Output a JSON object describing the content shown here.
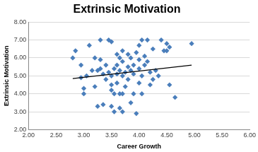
{
  "chart_data": {
    "type": "scatter",
    "title": "Extrinsic Motivation",
    "x_label": "Career Growth",
    "y_label": "Extrinsic Motivation",
    "xlim": [
      2,
      6
    ],
    "ylim": [
      2,
      8
    ],
    "xticks": [
      {
        "value": 2,
        "label": "2.00"
      },
      {
        "value": 2.5,
        "label": "2.50"
      },
      {
        "value": 3,
        "label": "3.00"
      },
      {
        "value": 3.5,
        "label": "3.50"
      },
      {
        "value": 4,
        "label": "4.00"
      },
      {
        "value": 4.5,
        "label": "4.50"
      },
      {
        "value": 5,
        "label": "5.00"
      },
      {
        "value": 5.5,
        "label": "5.50"
      },
      {
        "value": 6,
        "label": "6.00"
      }
    ],
    "yticks": [
      {
        "value": 2,
        "label": "2.00"
      },
      {
        "value": 3,
        "label": "3.00"
      },
      {
        "value": 4,
        "label": "4.00"
      },
      {
        "value": 5,
        "label": "5.00"
      },
      {
        "value": 6,
        "label": "6.00"
      },
      {
        "value": 7,
        "label": "7.00"
      },
      {
        "value": 8,
        "label": "8.00"
      }
    ],
    "grid": "y",
    "series": [
      {
        "type": "scatter",
        "color": "#4a7ebb",
        "marker": "diamond",
        "x": [
          2.8,
          2.85,
          2.95,
          2.95,
          3.0,
          3.0,
          3.05,
          3.1,
          3.15,
          3.2,
          3.2,
          3.25,
          3.25,
          3.3,
          3.3,
          3.3,
          3.35,
          3.35,
          3.4,
          3.4,
          3.45,
          3.45,
          3.5,
          3.5,
          3.5,
          3.5,
          3.5,
          3.55,
          3.55,
          3.55,
          3.6,
          3.6,
          3.6,
          3.6,
          3.65,
          3.65,
          3.65,
          3.65,
          3.7,
          3.7,
          3.7,
          3.7,
          3.7,
          3.75,
          3.75,
          3.8,
          3.8,
          3.8,
          3.85,
          3.85,
          3.85,
          3.9,
          3.9,
          3.9,
          3.95,
          3.95,
          4.0,
          4.0,
          4.0,
          4.0,
          4.05,
          4.05,
          4.05,
          4.1,
          4.1,
          4.15,
          4.15,
          4.2,
          4.2,
          4.25,
          4.25,
          4.3,
          4.35,
          4.4,
          4.45,
          4.5,
          4.5,
          4.55,
          4.55,
          4.65,
          4.95
        ],
        "values": [
          6.0,
          6.4,
          5.6,
          4.9,
          4.3,
          4.0,
          5.0,
          6.7,
          5.3,
          6.0,
          4.4,
          5.3,
          3.3,
          7.0,
          5.9,
          5.4,
          5.1,
          3.4,
          5.6,
          4.8,
          7.0,
          5.2,
          6.9,
          5.0,
          4.5,
          4.2,
          3.3,
          5.4,
          4.0,
          3.0,
          6.2,
          5.6,
          5.1,
          4.6,
          6.0,
          5.3,
          4.0,
          3.2,
          6.4,
          5.8,
          5.0,
          4.0,
          3.0,
          5.2,
          4.4,
          6.2,
          5.5,
          4.8,
          6.0,
          5.3,
          3.5,
          5.6,
          5.1,
          4.0,
          6.3,
          2.9,
          6.7,
          5.9,
          5.4,
          4.6,
          7.0,
          5.0,
          4.0,
          6.1,
          5.6,
          5.8,
          7.0,
          4.5,
          5.2,
          4.8,
          6.5,
          5.3,
          5.0,
          7.0,
          6.4,
          6.8,
          6.4,
          6.6,
          4.5,
          3.8,
          6.8
        ]
      },
      {
        "type": "line",
        "color": "#000000",
        "line_style": "solid",
        "x": [
          2.8,
          4.95
        ],
        "values": [
          4.85,
          5.6
        ]
      }
    ]
  }
}
